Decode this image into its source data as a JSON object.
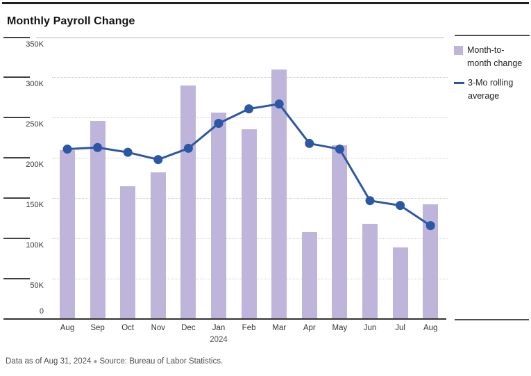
{
  "header": {
    "title": "Monthly Payroll Change"
  },
  "legend": {
    "items": [
      {
        "type": "bar",
        "label": "Month-to-month change"
      },
      {
        "type": "line",
        "label": "3-Mo rolling average"
      }
    ]
  },
  "footer": {
    "data_note": "Data as of Aug 31, 2024",
    "bullet": "●",
    "source": "Source: Bureau of Labor Statistics."
  },
  "chart_data": {
    "type": "bar",
    "unit": "thousands of jobs (K)",
    "categories": [
      "Aug",
      "Sep",
      "Oct",
      "Nov",
      "Dec",
      "Jan",
      "Feb",
      "Mar",
      "Apr",
      "May",
      "Jun",
      "Jul",
      "Aug"
    ],
    "x_year_label": {
      "index": 5,
      "text": "2024"
    },
    "series": [
      {
        "name": "Month-to-month change",
        "type": "bar",
        "color": "#bfb5da",
        "values": [
          210,
          246,
          165,
          182,
          290,
          256,
          236,
          310,
          108,
          216,
          118,
          89,
          142
        ]
      },
      {
        "name": "3-Mo rolling average",
        "type": "line",
        "color": "#2b57a5",
        "values": [
          211,
          213,
          207,
          198,
          212,
          243,
          261,
          267,
          218,
          211,
          147,
          141,
          116
        ]
      }
    ],
    "ylim": [
      0,
      350
    ],
    "yticks": [
      {
        "value": 350,
        "label": "350K"
      },
      {
        "value": 300,
        "label": "300K"
      },
      {
        "value": 250,
        "label": "250K"
      },
      {
        "value": 200,
        "label": "200K"
      },
      {
        "value": 150,
        "label": "150K"
      },
      {
        "value": 100,
        "label": "100K"
      },
      {
        "value": 50,
        "label": "50K"
      },
      {
        "value": 0,
        "label": "0"
      }
    ],
    "grid": "dotted-horizontal",
    "legend_position": "right"
  }
}
